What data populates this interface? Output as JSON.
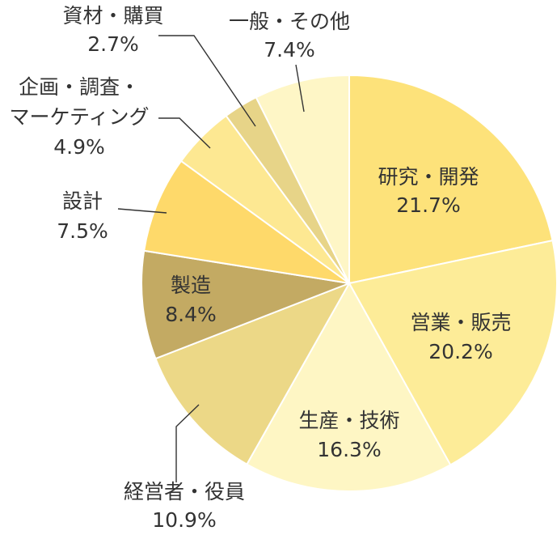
{
  "chart_data": {
    "type": "pie",
    "start_angle_deg": 0,
    "direction": "clockwise",
    "slices": [
      {
        "name": "研究・開発",
        "value": 21.7,
        "value_label": "21.7%",
        "color": "#fde27a"
      },
      {
        "name": "営業・販売",
        "value": 20.2,
        "value_label": "20.2%",
        "color": "#fdec98"
      },
      {
        "name": "生産・技術",
        "value": 16.3,
        "value_label": "16.3%",
        "color": "#fef6c4"
      },
      {
        "name": "経営者・役員",
        "value": 10.9,
        "value_label": "10.9%",
        "color": "#ecd887"
      },
      {
        "name": "製造",
        "value": 8.4,
        "value_label": "8.4%",
        "color": "#c3aa63"
      },
      {
        "name": "設計",
        "value": 7.5,
        "value_label": "7.5%",
        "color": "#fed96a"
      },
      {
        "name": "企画・調査・マーケティング",
        "name_lines": [
          "企画・調査・",
          "マーケティング"
        ],
        "value": 4.9,
        "value_label": "4.9%",
        "color": "#fde892"
      },
      {
        "name": "資材・購買",
        "value": 2.7,
        "value_label": "2.7%",
        "color": "#e7d488"
      },
      {
        "name": "一般・その他",
        "value": 7.4,
        "value_label": "7.4%",
        "color": "#fef6c6"
      }
    ]
  }
}
